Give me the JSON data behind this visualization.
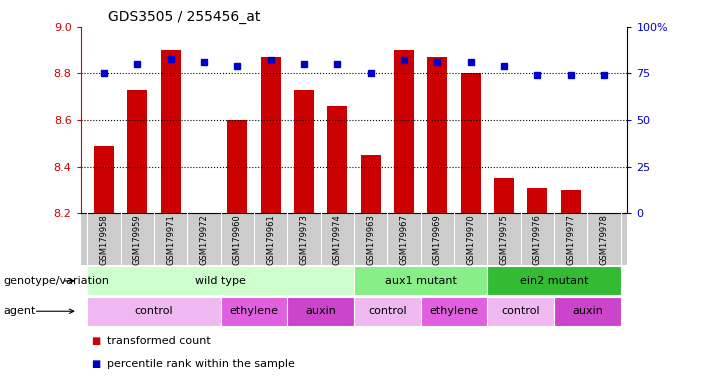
{
  "title": "GDS3505 / 255456_at",
  "samples": [
    "GSM179958",
    "GSM179959",
    "GSM179971",
    "GSM179972",
    "GSM179960",
    "GSM179961",
    "GSM179973",
    "GSM179974",
    "GSM179963",
    "GSM179967",
    "GSM179969",
    "GSM179970",
    "GSM179975",
    "GSM179976",
    "GSM179977",
    "GSM179978"
  ],
  "bar_values": [
    8.49,
    8.73,
    8.9,
    8.2,
    8.6,
    8.87,
    8.73,
    8.66,
    8.45,
    8.9,
    8.87,
    8.8,
    8.35,
    8.31,
    8.3,
    8.2
  ],
  "dot_values": [
    75,
    80,
    83,
    81,
    79,
    82,
    80,
    80,
    75,
    82,
    81,
    81,
    79,
    74,
    74,
    74
  ],
  "bar_color": "#cc0000",
  "dot_color": "#0000cc",
  "ymin": 8.2,
  "ymax": 9.0,
  "y2min": 0,
  "y2max": 100,
  "yticks": [
    8.2,
    8.4,
    8.6,
    8.8,
    9.0
  ],
  "y2ticks": [
    0,
    25,
    50,
    75,
    100
  ],
  "y2ticklabels": [
    "0",
    "25",
    "50",
    "75",
    "100%"
  ],
  "hlines": [
    8.4,
    8.6,
    8.8
  ],
  "genotype_groups": [
    {
      "label": "wild type",
      "start": 0,
      "end": 8,
      "color": "#ccffcc"
    },
    {
      "label": "aux1 mutant",
      "start": 8,
      "end": 12,
      "color": "#88ee88"
    },
    {
      "label": "ein2 mutant",
      "start": 12,
      "end": 16,
      "color": "#33bb33"
    }
  ],
  "agent_groups": [
    {
      "label": "control",
      "start": 0,
      "end": 4,
      "color": "#f0b8f0"
    },
    {
      "label": "ethylene",
      "start": 4,
      "end": 6,
      "color": "#e060e0"
    },
    {
      "label": "auxin",
      "start": 6,
      "end": 8,
      "color": "#cc44cc"
    },
    {
      "label": "control",
      "start": 8,
      "end": 10,
      "color": "#f0b8f0"
    },
    {
      "label": "ethylene",
      "start": 10,
      "end": 12,
      "color": "#e060e0"
    },
    {
      "label": "control",
      "start": 12,
      "end": 14,
      "color": "#f0b8f0"
    },
    {
      "label": "auxin",
      "start": 14,
      "end": 16,
      "color": "#cc44cc"
    }
  ],
  "legend_items": [
    {
      "label": "transformed count",
      "color": "#cc0000"
    },
    {
      "label": "percentile rank within the sample",
      "color": "#0000cc"
    }
  ],
  "row_labels": [
    "genotype/variation",
    "agent"
  ],
  "xtick_bg": "#cccccc",
  "plot_bg": "#ffffff",
  "background_color": "#ffffff"
}
